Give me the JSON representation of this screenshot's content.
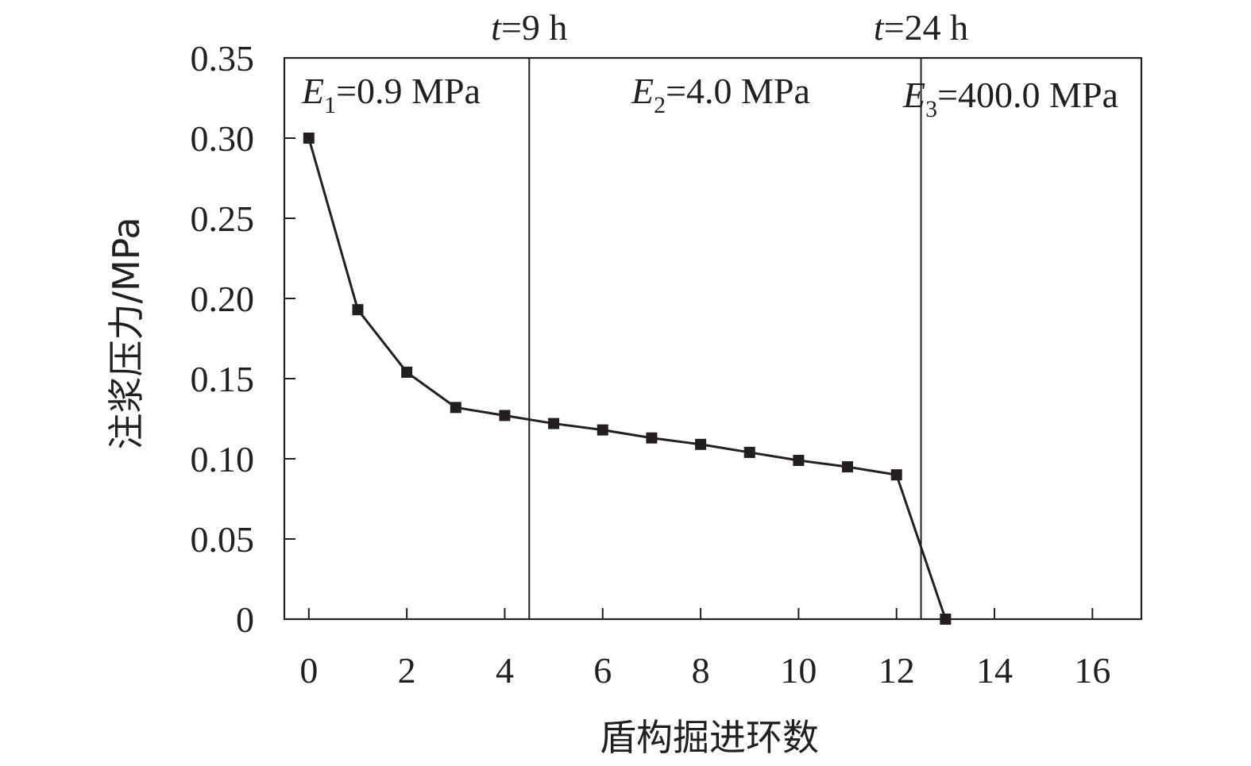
{
  "chart_data": {
    "type": "line",
    "xlabel": "盾构掘进环数",
    "ylabel": "注浆压力/MPa",
    "xlim": [
      -0.5,
      17
    ],
    "ylim": [
      0,
      0.35
    ],
    "x_ticks": [
      0,
      2,
      4,
      6,
      8,
      10,
      12,
      14,
      16
    ],
    "x_tick_labels": [
      "0",
      "2",
      "4",
      "6",
      "8",
      "10",
      "12",
      "14",
      "16"
    ],
    "y_ticks": [
      0,
      0.05,
      0.1,
      0.15,
      0.2,
      0.25,
      0.3,
      0.35
    ],
    "y_tick_labels": [
      "0",
      "0.05",
      "0.10",
      "0.15",
      "0.20",
      "0.25",
      "0.30",
      "0.35"
    ],
    "grid": false,
    "series": [
      {
        "marker": "square",
        "color": "#231f20",
        "x": [
          0,
          1,
          2,
          3,
          4,
          5,
          6,
          7,
          8,
          9,
          10,
          11,
          12,
          13
        ],
        "values": [
          0.3,
          0.193,
          0.154,
          0.132,
          0.127,
          0.122,
          0.118,
          0.113,
          0.109,
          0.104,
          0.099,
          0.095,
          0.09,
          0.0
        ]
      }
    ],
    "vertical_lines": [
      {
        "x": 4.5,
        "label_var": "t",
        "label_rest": "=9 h"
      },
      {
        "x": 12.5,
        "label_var": "t",
        "label_rest": "=24 h"
      }
    ],
    "phases": [
      {
        "var": "E",
        "sub": "1",
        "rest": "=0.9 MPa"
      },
      {
        "var": "E",
        "sub": "2",
        "rest": "=4.0 MPa"
      },
      {
        "var": "E",
        "sub": "3",
        "rest": "=400.0 MPa"
      }
    ]
  }
}
